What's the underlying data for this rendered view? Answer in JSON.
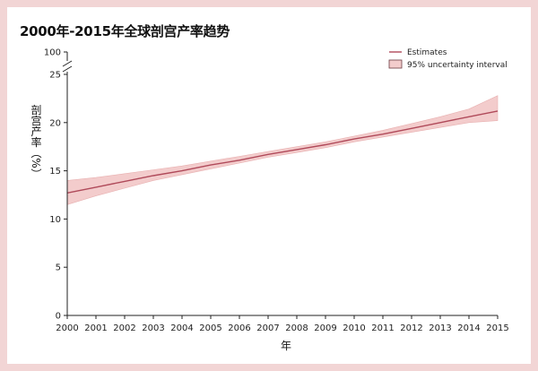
{
  "chart_data": {
    "type": "line",
    "title": "2000年-2015年全球剖宫产率趋势",
    "xlabel": "年",
    "ylabel": "剖宫产率（%）",
    "x": [
      2000,
      2001,
      2002,
      2003,
      2004,
      2005,
      2006,
      2007,
      2008,
      2009,
      2010,
      2011,
      2012,
      2013,
      2014,
      2015
    ],
    "y_ticks": [
      0,
      5,
      10,
      15,
      20,
      25,
      100
    ],
    "ylim": [
      0,
      25
    ],
    "y_axis_break": true,
    "grid": false,
    "legend_position": "top-right",
    "series": [
      {
        "name": "Estimates",
        "values": [
          12.7,
          13.3,
          13.9,
          14.5,
          15.0,
          15.6,
          16.1,
          16.7,
          17.2,
          17.7,
          18.3,
          18.8,
          19.4,
          20.0,
          20.6,
          21.2
        ]
      }
    ],
    "interval": {
      "name": "95% uncertainty interval",
      "lower": [
        11.5,
        12.4,
        13.2,
        14.0,
        14.6,
        15.2,
        15.8,
        16.4,
        16.9,
        17.4,
        18.0,
        18.5,
        19.0,
        19.5,
        20.0,
        20.2
      ],
      "upper": [
        14.0,
        14.3,
        14.7,
        15.1,
        15.5,
        16.0,
        16.5,
        17.0,
        17.5,
        18.0,
        18.6,
        19.2,
        19.9,
        20.6,
        21.4,
        22.8
      ]
    },
    "colors": {
      "line": "#b04a5a",
      "band": "#f3cccc",
      "band_edge": "#e8b0b0"
    }
  }
}
